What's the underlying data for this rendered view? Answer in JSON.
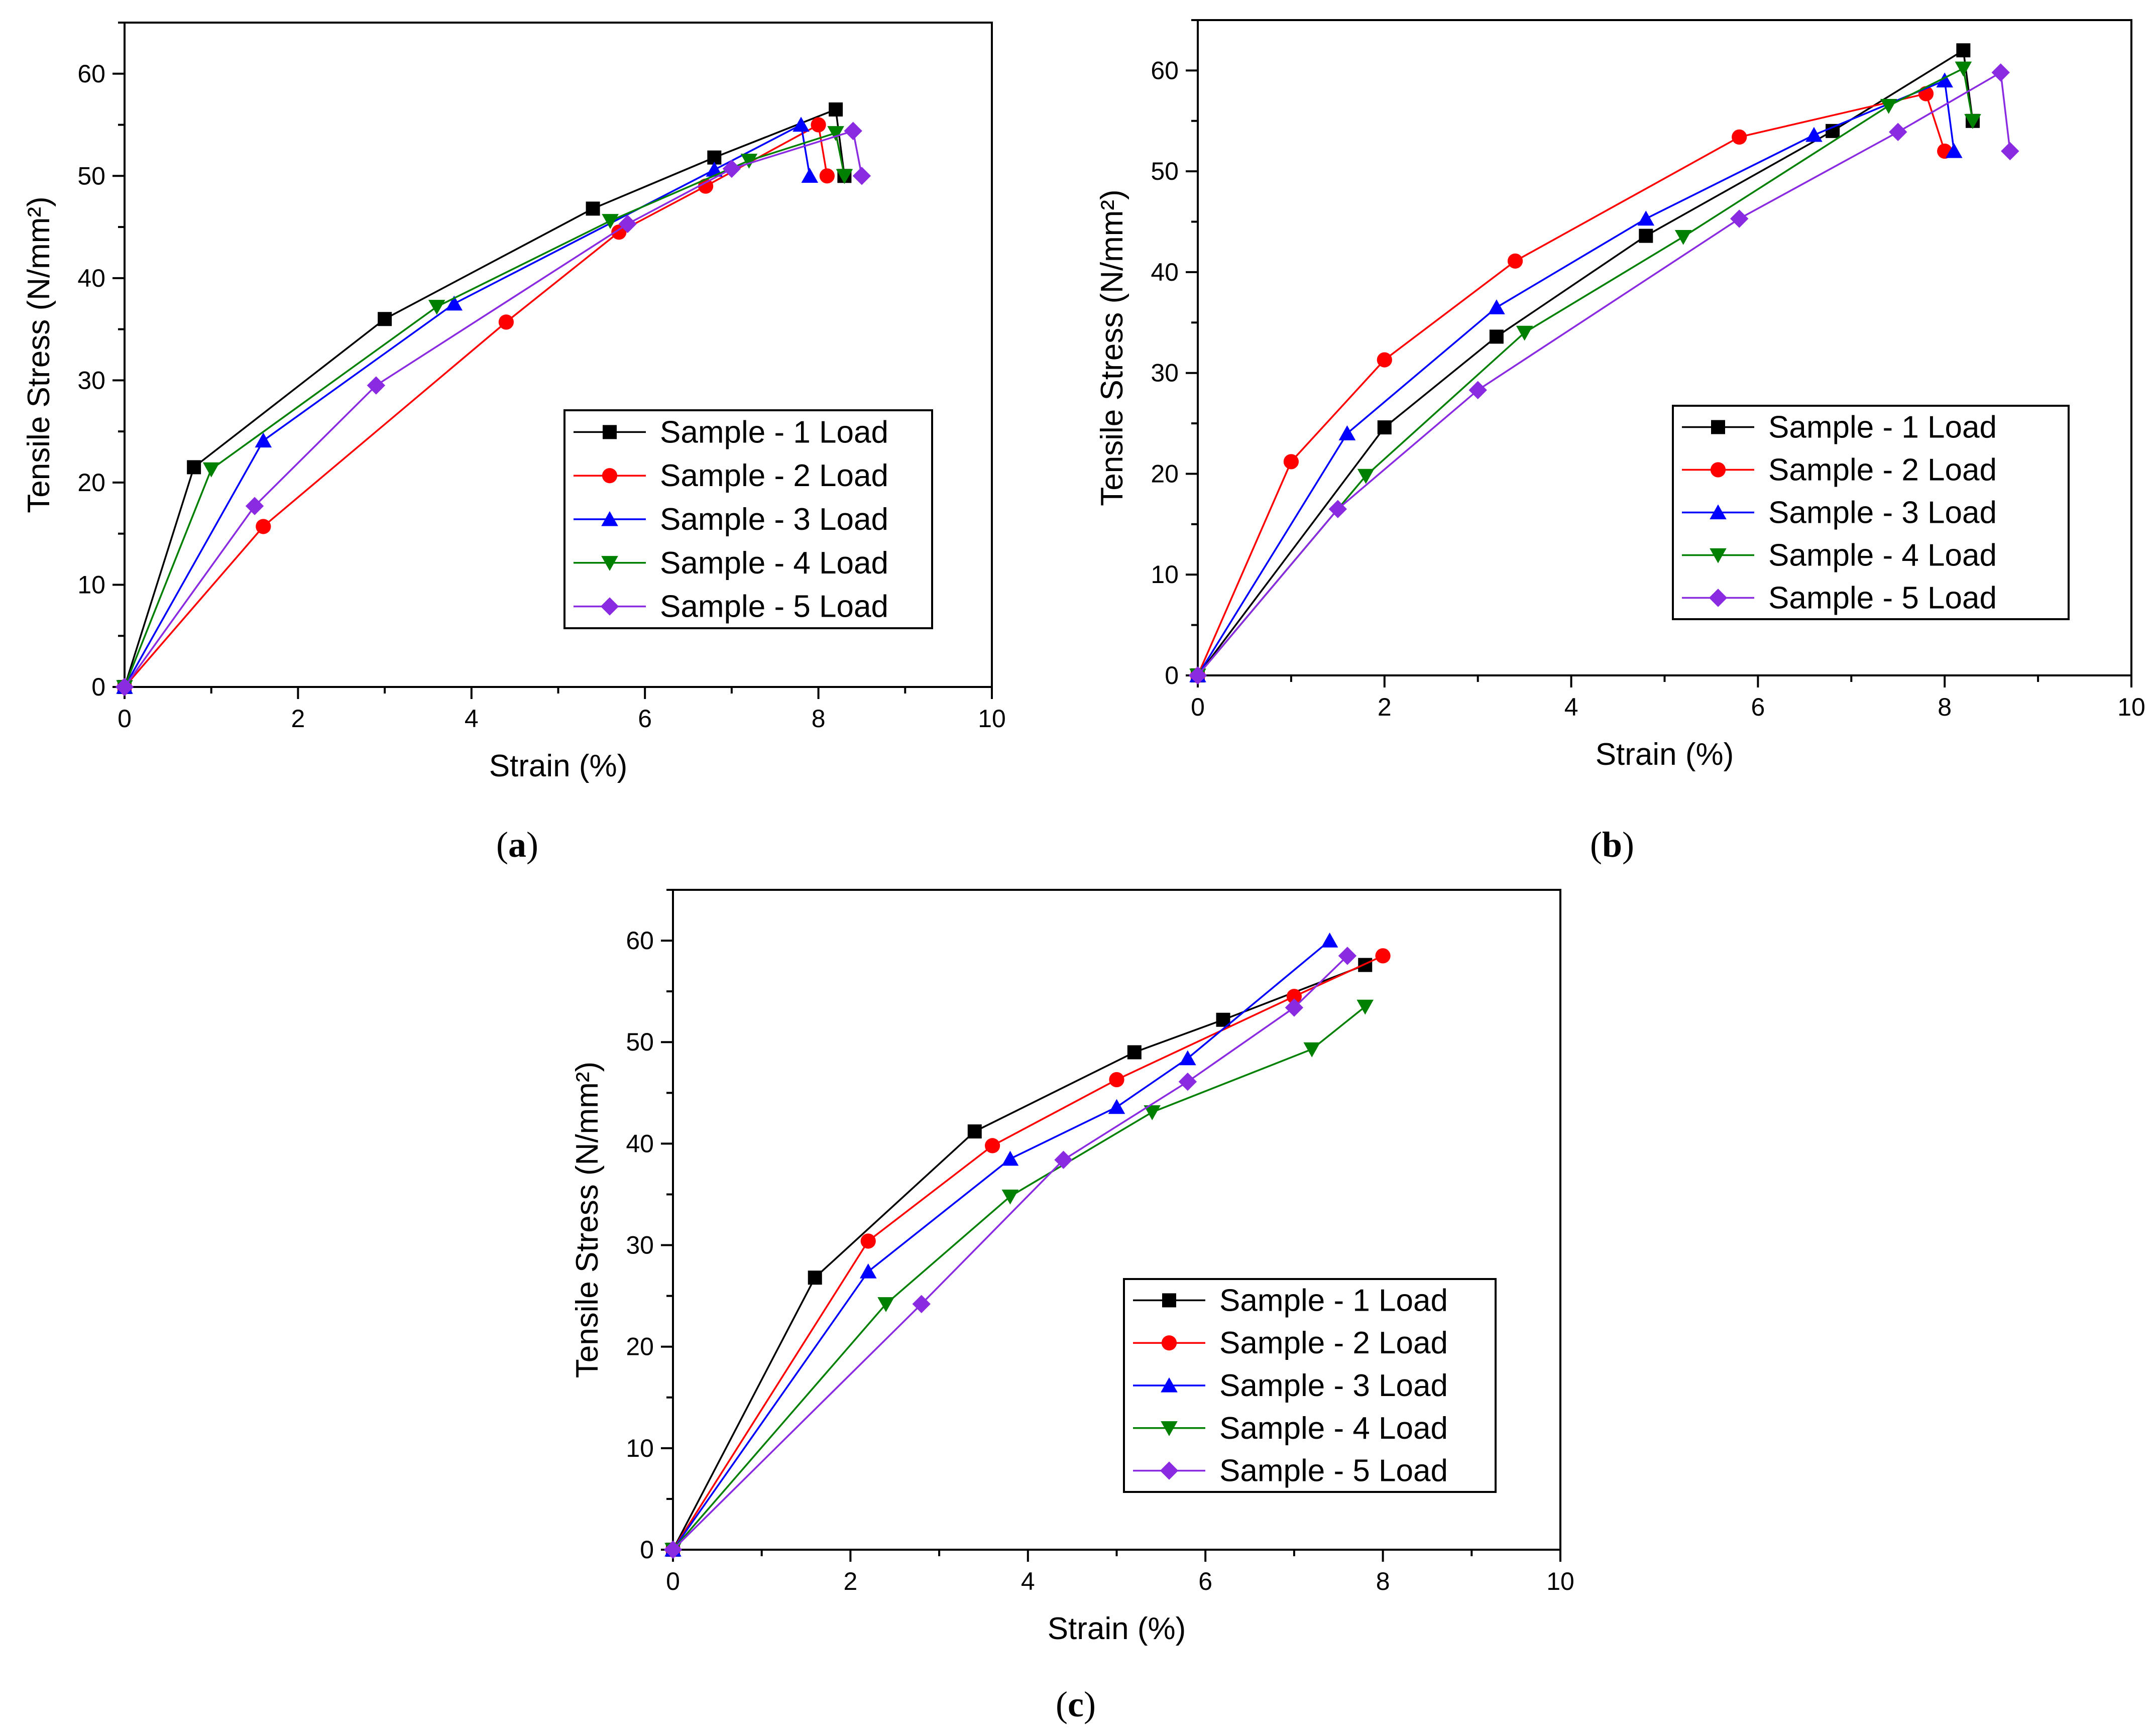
{
  "styles": {
    "series": [
      {
        "color": "#000000",
        "marker": "square"
      },
      {
        "color": "#ff0000",
        "marker": "circle"
      },
      {
        "color": "#0000ff",
        "marker": "triangle-up"
      },
      {
        "color": "#008000",
        "marker": "triangle-down"
      },
      {
        "color": "#8a2be2",
        "marker": "diamond"
      }
    ]
  },
  "chart_data": [
    {
      "panel": "a",
      "panel_label": "(a)",
      "type": "line",
      "xlabel": "Strain (%)",
      "ylabel": "Tensile Stress  (N/mm²)",
      "xlim": [
        0,
        10
      ],
      "ylim": [
        0,
        65
      ],
      "xticks": [
        0,
        2,
        4,
        6,
        8,
        10
      ],
      "yticks": [
        0,
        10,
        20,
        30,
        40,
        50,
        60
      ],
      "grid": false,
      "legend": "lower-right",
      "series": [
        {
          "name": "Sample - 1 Load",
          "x": [
            0,
            0.8,
            3.0,
            5.4,
            6.8,
            8.2,
            8.3
          ],
          "y": [
            0,
            21.5,
            36,
            46.8,
            51.8,
            56.5,
            50
          ]
        },
        {
          "name": "Sample - 2 Load",
          "x": [
            0,
            1.6,
            4.4,
            5.7,
            6.7,
            8.0,
            8.1
          ],
          "y": [
            0,
            15.7,
            35.7,
            44.5,
            49,
            55,
            50
          ]
        },
        {
          "name": "Sample - 3 Load",
          "x": [
            0,
            1.6,
            3.8,
            6.8,
            7.8,
            7.9
          ],
          "y": [
            0,
            24.1,
            37.5,
            50.6,
            55,
            50
          ]
        },
        {
          "name": "Sample - 4 Load",
          "x": [
            0,
            1.0,
            3.6,
            5.6,
            7.2,
            8.2,
            8.3
          ],
          "y": [
            0,
            21.3,
            37.2,
            45.6,
            51.5,
            54.2,
            50
          ]
        },
        {
          "name": "Sample - 5 Load",
          "x": [
            0,
            1.5,
            2.9,
            5.8,
            7.0,
            8.4,
            8.5
          ],
          "y": [
            0,
            17.7,
            29.5,
            45.3,
            50.7,
            54.4,
            50
          ]
        }
      ]
    },
    {
      "panel": "b",
      "panel_label": "(b)",
      "type": "line",
      "xlabel": "Strain (%)",
      "ylabel": "Tensile Stress  (N/mm²)",
      "xlim": [
        0,
        10
      ],
      "ylim": [
        0,
        65
      ],
      "xticks": [
        0,
        2,
        4,
        6,
        8,
        10
      ],
      "yticks": [
        0,
        10,
        20,
        30,
        40,
        50,
        60
      ],
      "grid": false,
      "legend": "lower-right",
      "series": [
        {
          "name": "Sample - 1 Load",
          "x": [
            0,
            2.0,
            3.2,
            4.8,
            6.8,
            8.2,
            8.3
          ],
          "y": [
            0,
            24.6,
            33.6,
            43.6,
            54,
            62,
            55
          ]
        },
        {
          "name": "Sample - 2 Load",
          "x": [
            0,
            1.0,
            2.0,
            3.4,
            5.8,
            7.8,
            8.0
          ],
          "y": [
            0,
            21.2,
            31.3,
            41.1,
            53.4,
            57.7,
            52
          ]
        },
        {
          "name": "Sample - 3 Load",
          "x": [
            0,
            1.6,
            3.2,
            4.8,
            6.6,
            8.0,
            8.1
          ],
          "y": [
            0,
            24,
            36.5,
            45.3,
            53.6,
            59,
            52
          ]
        },
        {
          "name": "Sample - 4 Load",
          "x": [
            0,
            1.8,
            3.5,
            5.2,
            7.4,
            8.2,
            8.3
          ],
          "y": [
            0,
            19.8,
            34,
            43.5,
            56.5,
            60.2,
            55
          ]
        },
        {
          "name": "Sample - 5 Load",
          "x": [
            0,
            1.5,
            3.0,
            5.8,
            7.5,
            8.6,
            8.7
          ],
          "y": [
            0,
            16.5,
            28.3,
            45.3,
            53.9,
            59.8,
            52
          ]
        }
      ]
    },
    {
      "panel": "c",
      "panel_label": "(c)",
      "type": "line",
      "xlabel": "Strain (%)",
      "ylabel": "Tensile Stress  (N/mm²)",
      "xlim": [
        0,
        10
      ],
      "ylim": [
        0,
        65
      ],
      "xticks": [
        0,
        2,
        4,
        6,
        8,
        10
      ],
      "yticks": [
        0,
        10,
        20,
        30,
        40,
        50,
        60
      ],
      "grid": false,
      "legend": "lower-right",
      "series": [
        {
          "name": "Sample - 1 Load",
          "x": [
            0,
            1.6,
            3.4,
            5.2,
            6.2,
            7.8
          ],
          "y": [
            0,
            26.8,
            41.2,
            49,
            52.2,
            57.6
          ]
        },
        {
          "name": "Sample - 2 Load",
          "x": [
            0,
            2.2,
            3.6,
            5.0,
            7.0,
            8.0
          ],
          "y": [
            0,
            30.4,
            39.8,
            46.3,
            54.5,
            58.5
          ]
        },
        {
          "name": "Sample - 3 Load",
          "x": [
            0,
            2.2,
            3.8,
            5.0,
            5.8,
            7.4
          ],
          "y": [
            0,
            27.4,
            38.5,
            43.6,
            48.4,
            60
          ]
        },
        {
          "name": "Sample - 4 Load",
          "x": [
            0,
            2.4,
            3.8,
            5.4,
            7.2,
            7.8
          ],
          "y": [
            0,
            24.2,
            34.8,
            43.1,
            49.3,
            53.5
          ]
        },
        {
          "name": "Sample - 5 Load",
          "x": [
            0,
            2.8,
            4.4,
            5.8,
            7.0,
            7.6
          ],
          "y": [
            0,
            24.2,
            38.4,
            46.1,
            53.4,
            58.5
          ]
        }
      ]
    }
  ]
}
